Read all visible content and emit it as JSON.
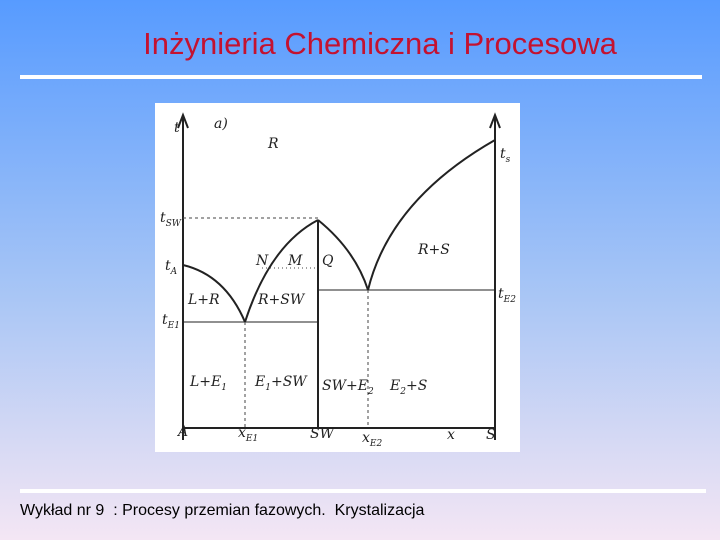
{
  "header": {
    "title": "Inżynieria Chemiczna i Procesowa"
  },
  "diagram": {
    "labels": [
      {
        "pre": "t"
      },
      {
        "pre": "a)"
      },
      {
        "pre": "R"
      },
      {
        "pre": "t",
        "sub": "s"
      },
      {
        "pre": "t",
        "sub": "SW"
      },
      {
        "pre": "t",
        "sub": "A"
      },
      {
        "pre": "N"
      },
      {
        "pre": "M"
      },
      {
        "pre": "Q"
      },
      {
        "pre": "R+S"
      },
      {
        "pre": "t",
        "sub": "E2"
      },
      {
        "pre": "L+R"
      },
      {
        "pre": "R+SW"
      },
      {
        "pre": "t",
        "sub": "E1"
      },
      {
        "pre": "L+E",
        "sub": "1"
      },
      {
        "pre": "E",
        "sub": "1",
        "post": "+SW"
      },
      {
        "pre": "SW+E",
        "sub": "2"
      },
      {
        "pre": "E",
        "sub": "2",
        "post": "+S"
      },
      {
        "pre": "A"
      },
      {
        "pre": "x",
        "sub": "E1"
      },
      {
        "pre": "SW"
      },
      {
        "pre": "x",
        "sub": "E2"
      },
      {
        "pre": "x"
      },
      {
        "pre": "S"
      }
    ]
  },
  "footer": {
    "text": "Wykład nr 9  : Procesy przemian fazowych.  Krystalizacja"
  }
}
